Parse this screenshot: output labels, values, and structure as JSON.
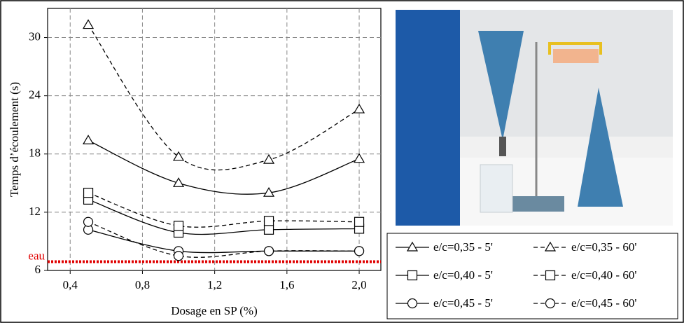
{
  "chart_data": {
    "type": "line",
    "x_label": "Dosage en SP (%)",
    "y_label": "Temps d’écoulement (s)",
    "x": [
      0.5,
      1.0,
      1.5,
      2.0
    ],
    "xlim": [
      0.275,
      2.12
    ],
    "ylim": [
      6,
      33
    ],
    "xticks": [
      {
        "value": 0.4,
        "label": "0,4"
      },
      {
        "value": 0.8,
        "label": "0,8"
      },
      {
        "value": 1.2,
        "label": "1,2"
      },
      {
        "value": 1.6,
        "label": "1,6"
      },
      {
        "value": 2.0,
        "label": "2,0"
      }
    ],
    "yticks": [
      6,
      12,
      18,
      24,
      30
    ],
    "grid": true,
    "reference": {
      "label": "eau",
      "value": 6.9,
      "color": "#e00000"
    },
    "series": [
      {
        "name": "e/c=0,35 - 5'",
        "marker": "triangle",
        "style": "solid",
        "color": "#000000",
        "values": [
          19.4,
          15.0,
          14.0,
          17.5
        ]
      },
      {
        "name": "e/c=0,35 - 60'",
        "marker": "triangle",
        "style": "dashed",
        "color": "#000000",
        "values": [
          31.3,
          17.7,
          17.4,
          22.6
        ]
      },
      {
        "name": "e/c=0,40 - 5'",
        "marker": "square",
        "style": "solid",
        "color": "#000000",
        "values": [
          13.3,
          9.9,
          10.2,
          10.3
        ]
      },
      {
        "name": "e/c=0,40 - 60'",
        "marker": "square",
        "style": "dashed",
        "color": "#000000",
        "values": [
          14.0,
          10.6,
          11.1,
          11.0
        ]
      },
      {
        "name": "e/c=0,45 - 5'",
        "marker": "circle",
        "style": "solid",
        "color": "#000000",
        "values": [
          10.2,
          8.0,
          8.0,
          8.0
        ]
      },
      {
        "name": "e/c=0,45 - 60'",
        "marker": "circle",
        "style": "dashed",
        "color": "#000000",
        "values": [
          11.0,
          7.5,
          8.0,
          8.0
        ]
      }
    ]
  }
}
